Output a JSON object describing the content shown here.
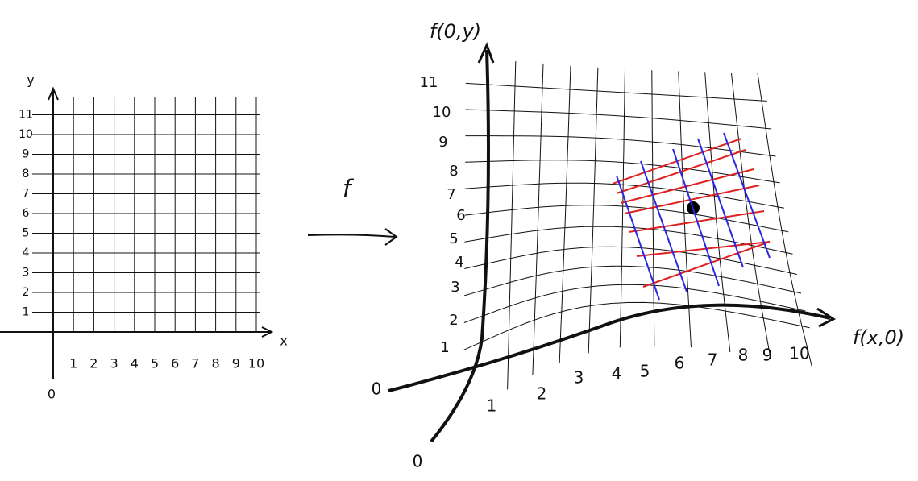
{
  "left_grid": {
    "y_label": "y",
    "x_label": "x",
    "origin": 0,
    "x_ticks": [
      1,
      2,
      3,
      4,
      5,
      6,
      7,
      8,
      9,
      10
    ],
    "y_ticks": [
      1,
      2,
      3,
      4,
      5,
      6,
      7,
      8,
      9,
      10,
      11
    ]
  },
  "map_label": "f",
  "right_grid": {
    "y_axis_label": "f(0,y)",
    "x_axis_label": "f(x,0)",
    "origin_x_axis": 0,
    "origin_y_axis": 0,
    "x_ticks": [
      1,
      2,
      3,
      4,
      5,
      6,
      7,
      8,
      9,
      10
    ],
    "y_ticks": [
      1,
      2,
      3,
      4,
      5,
      6,
      7,
      8,
      9,
      10,
      11
    ]
  }
}
